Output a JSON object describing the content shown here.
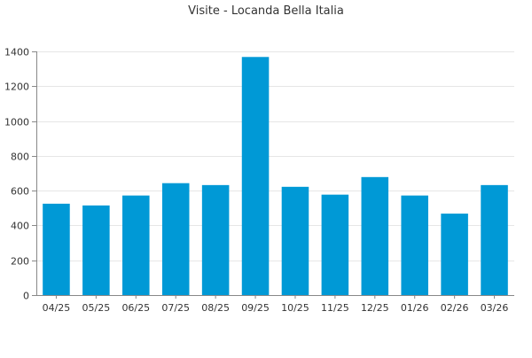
{
  "chart_data": {
    "type": "bar",
    "title": "Visite - Locanda Bella Italia",
    "xlabel": "",
    "ylabel": "",
    "categories": [
      "04/25",
      "05/25",
      "06/25",
      "07/25",
      "08/25",
      "09/25",
      "10/25",
      "11/25",
      "12/25",
      "01/26",
      "02/26",
      "03/26"
    ],
    "values": [
      525,
      515,
      572,
      643,
      632,
      1368,
      622,
      577,
      678,
      572,
      468,
      632
    ],
    "ylim": [
      0,
      1400
    ],
    "yticks": [
      0,
      200,
      400,
      600,
      800,
      1000,
      1200,
      1400
    ],
    "grid": true,
    "bar_color": "#0099d6"
  }
}
